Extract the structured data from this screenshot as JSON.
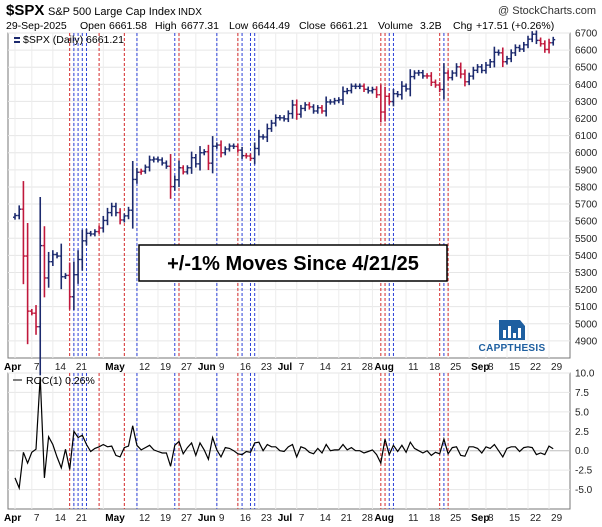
{
  "header": {
    "symbol": "$SPX",
    "name": "S&P 500 Large Cap Index",
    "exchange": "INDX",
    "watermark": "@ StockCharts.com",
    "date": "29-Sep-2025",
    "open_label": "Open",
    "open": "6661.58",
    "high_label": "High",
    "high": "6677.31",
    "low_label": "Low",
    "low": "6644.49",
    "close_label": "Close",
    "close": "6661.21",
    "volume_label": "Volume",
    "volume": "3.2B",
    "chg_label": "Chg",
    "chg": "+17.51 (+0.26%)"
  },
  "price_legend": "$SPX (Daily) 6661.21",
  "roc_legend": "ROC(1) 0.26%",
  "annotation": "+/-1% Moves Since 4/21/25",
  "logo_text": "CAPPTHESIS",
  "colors": {
    "up": "#1c2a6e",
    "down": "#c0183c",
    "blue_marker": "#2a3fd8",
    "red_marker": "#d42a2a",
    "roc_line": "#000000",
    "logo": "#1e5fa0"
  },
  "chart_data": [
    {
      "type": "ohlc",
      "title": "$SPX (Daily) 6661.21",
      "ylim": [
        4800,
        6700
      ],
      "yticks": [
        4900,
        5000,
        5100,
        5200,
        5300,
        5400,
        5500,
        5600,
        5700,
        5800,
        5900,
        6000,
        6100,
        6200,
        6300,
        6400,
        6500,
        6600,
        6700
      ],
      "x_tick_labels": [
        "Apr",
        "7",
        "14",
        "21",
        "May",
        "12",
        "19",
        "27",
        "Jun",
        "9",
        "16",
        "23",
        "Jul",
        "7",
        "14",
        "21",
        "28",
        "Aug",
        "11",
        "18",
        "25",
        "Sep",
        "8",
        "15",
        "22",
        "29"
      ],
      "bold_x_labels": [
        "Apr",
        "May",
        "Jun",
        "Jul",
        "Aug",
        "Sep"
      ],
      "grid": true,
      "closes": [
        5633,
        5670,
        5396,
        5074,
        5062,
        4983,
        5457,
        5268,
        5363,
        5405,
        5396,
        5275,
        5283,
        5158,
        5287,
        5376,
        5485,
        5529,
        5525,
        5539,
        5560,
        5604,
        5650,
        5686,
        5650,
        5607,
        5631,
        5664,
        5844,
        5886,
        5892,
        5916,
        5958,
        5963,
        5958,
        5940,
        5921,
        5802,
        5842,
        5912,
        5888,
        5912,
        5971,
        5935,
        6000,
        6006,
        5939,
        6038,
        6045,
        6000,
        6022,
        6039,
        6037,
        6015,
        5983,
        5981,
        5967,
        6025,
        6093,
        6092,
        6141,
        6173,
        6205,
        6204,
        6198,
        6229,
        6279,
        6225,
        6259,
        6280,
        6268,
        6244,
        6263,
        6244,
        6297,
        6297,
        6305,
        6309,
        6358,
        6363,
        6389,
        6388,
        6389,
        6371,
        6362,
        6370,
        6339,
        6238,
        6330,
        6299,
        6345,
        6340,
        6389,
        6373,
        6445,
        6466,
        6468,
        6449,
        6449,
        6412,
        6396,
        6370,
        6466,
        6439,
        6466,
        6502,
        6460,
        6415,
        6448,
        6482,
        6502,
        6481,
        6512,
        6532,
        6587,
        6584,
        6532,
        6550,
        6584,
        6615,
        6606,
        6631,
        6664,
        6693,
        6657,
        6637,
        6604,
        6643,
        6661
      ],
      "down_days": [
        2,
        3,
        4,
        5,
        7,
        13,
        20,
        25,
        30,
        37,
        40,
        46,
        49,
        53,
        55,
        56,
        67,
        70,
        73,
        83,
        86,
        87,
        88,
        89,
        98,
        99,
        100,
        101,
        103,
        106,
        107,
        116,
        125,
        126,
        127
      ],
      "blue_markers": [
        14,
        15,
        16,
        17,
        29,
        38,
        48,
        54,
        56,
        57,
        89,
        90,
        102
      ],
      "red_markers": [
        13,
        20,
        26,
        39,
        53,
        87,
        88,
        101,
        103
      ]
    },
    {
      "type": "line",
      "title": "ROC(1) 0.26%",
      "ylim": [
        -7.5,
        10.0
      ],
      "yticks": [
        -5.0,
        -2.5,
        0.0,
        2.5,
        5.0,
        7.5,
        10.0
      ],
      "ytick_labels": [
        "-5.0",
        "-2.5",
        "0.0",
        "2.5",
        "5.0",
        "7.5",
        "10.0"
      ],
      "values": [
        -3.5,
        -4.8,
        -0.2,
        -1.6,
        -0.2,
        0.2,
        9.5,
        -3.5,
        1.8,
        0.8,
        -0.8,
        -2.2,
        0.2,
        -2.4,
        2.5,
        1.7,
        2.0,
        0.8,
        -0.1,
        0.3,
        0.5,
        0.8,
        0.5,
        0.6,
        -0.6,
        -0.8,
        0.4,
        0.6,
        3.2,
        0.7,
        0.1,
        0.4,
        0.7,
        0.1,
        -0.1,
        -0.3,
        -0.3,
        -2.0,
        0.7,
        1.2,
        -0.4,
        0.4,
        1.0,
        -0.6,
        1.0,
        0.1,
        -1.1,
        1.7,
        0.1,
        -0.8,
        0.4,
        0.3,
        0.0,
        -0.4,
        -0.5,
        -0.1,
        -0.2,
        1.0,
        1.1,
        0.0,
        0.8,
        0.5,
        0.5,
        0.0,
        -0.1,
        0.5,
        0.8,
        -0.8,
        0.5,
        0.3,
        -0.2,
        -0.4,
        0.3,
        -0.3,
        0.8,
        0.0,
        0.1,
        0.1,
        0.8,
        0.1,
        0.4,
        0.0,
        0.0,
        -0.3,
        -0.1,
        0.1,
        -0.5,
        -1.6,
        1.5,
        -0.5,
        0.7,
        -0.1,
        0.7,
        -0.2,
        1.1,
        0.3,
        0.0,
        -0.3,
        0.0,
        -0.6,
        -0.2,
        -0.4,
        1.5,
        -0.4,
        0.4,
        0.5,
        -0.6,
        -0.7,
        0.5,
        0.5,
        0.3,
        -0.3,
        0.5,
        0.3,
        0.8,
        0.0,
        -0.8,
        0.3,
        0.5,
        0.5,
        -0.1,
        0.4,
        0.5,
        0.4,
        -0.5,
        -0.3,
        -0.5,
        0.6,
        0.26
      ]
    }
  ]
}
